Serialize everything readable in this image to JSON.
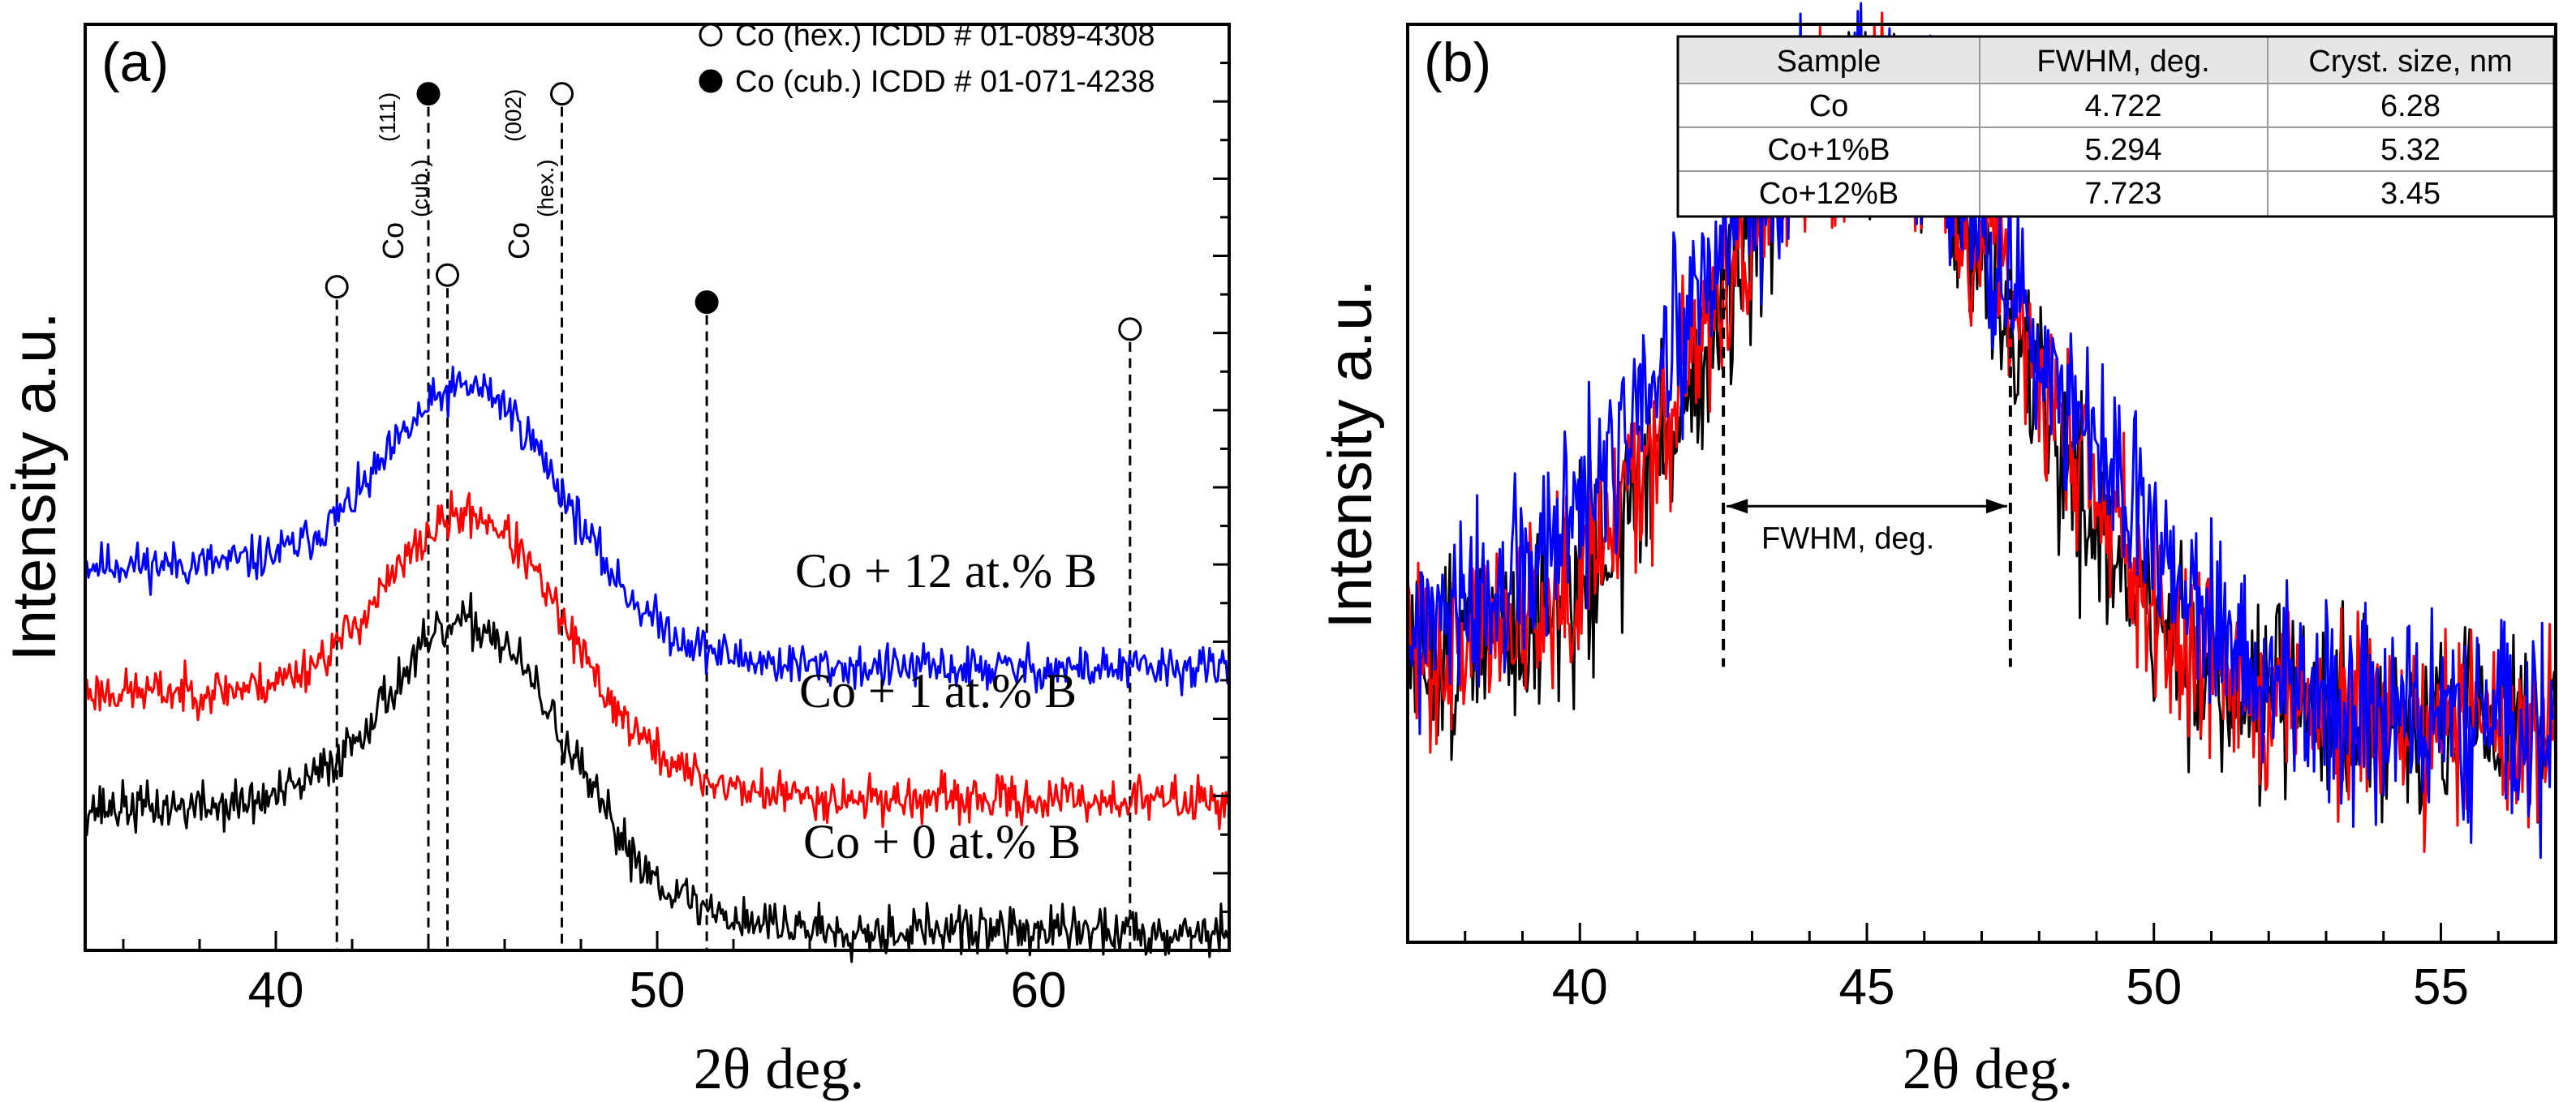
{
  "chart_data": [
    {
      "id": "a",
      "type": "line",
      "panel_label": "(a)",
      "xlabel": "2θ deg.",
      "ylabel": "Intensity a.u.",
      "xlim": [
        35,
        65
      ],
      "ylim": [
        0,
        12
      ],
      "xticks": [
        40,
        50,
        60
      ],
      "legend": [
        {
          "marker": "open-circle",
          "label": "Co (hex.) ICDD # 01-089-4308"
        },
        {
          "marker": "filled-circle",
          "label": "Co (cub.) ICDD # 01-071-4238"
        }
      ],
      "reference_lines": [
        {
          "x": 41.6,
          "marker": "open",
          "marker_y": 8.6
        },
        {
          "x": 44.0,
          "marker": "filled",
          "marker_y": 11.1
        },
        {
          "x": 44.5,
          "marker": "open",
          "marker_y": 8.75
        },
        {
          "x": 47.5,
          "marker": "open",
          "marker_y": 11.1
        },
        {
          "x": 51.3,
          "marker": "filled",
          "marker_y": 8.4
        },
        {
          "x": 62.4,
          "marker": "open",
          "marker_y": 8.05
        }
      ],
      "phase_labels": [
        {
          "text": "Co",
          "sub": "(cub.)",
          "sup": "(111)",
          "x": 44.0
        },
        {
          "text": "Co",
          "sub": "(hex.)",
          "sup": "(002)",
          "x": 47.5
        }
      ],
      "series": [
        {
          "name": "Co + 12 at.% B",
          "color": "#0000ff",
          "baseline": 5.0,
          "tail": 3.65,
          "peak": 2.45,
          "noise": 0.22,
          "seed": 11
        },
        {
          "name": "Co + 1 at.% B",
          "color": "#ff0000",
          "baseline": 3.35,
          "tail": 1.95,
          "peak": 2.45,
          "noise": 0.22,
          "seed": 23
        },
        {
          "name": "Co + 0 at.% B",
          "color": "#000000",
          "baseline": 1.85,
          "tail": 0.25,
          "peak": 2.55,
          "noise": 0.24,
          "seed": 37
        }
      ]
    },
    {
      "id": "b",
      "type": "line",
      "panel_label": "(b)",
      "xlabel": "2θ deg.",
      "ylabel": "Intensity a.u.",
      "xlim": [
        37,
        57
      ],
      "ylim": [
        0,
        12
      ],
      "xticks": [
        40,
        45,
        50,
        55
      ],
      "fwhm_annotation": {
        "label": "FWHM, deg.",
        "x_left": 42.5,
        "x_right": 47.5,
        "y": 5.7
      },
      "series": [
        {
          "name": "Co",
          "color": "#000000",
          "seed": 51
        },
        {
          "name": "Co+1%B",
          "color": "#ff0000",
          "seed": 63
        },
        {
          "name": "Co+12%B",
          "color": "#0000ff",
          "seed": 77
        }
      ],
      "table": {
        "columns": [
          "Sample",
          "FWHM, deg.",
          "Cryst. size, nm"
        ],
        "rows": [
          [
            "Co",
            "4.722",
            "6.28"
          ],
          [
            "Co+1%B",
            "5.294",
            "5.32"
          ],
          [
            "Co+12%B",
            "7.723",
            "3.45"
          ]
        ]
      }
    }
  ]
}
